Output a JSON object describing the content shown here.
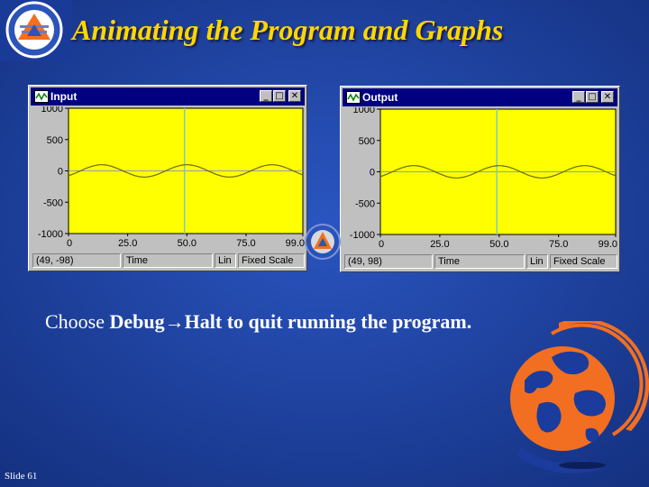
{
  "slide": {
    "title": "Animating the Program and Graphs",
    "caption_prefix": "Choose ",
    "caption_bold": "Debug→Halt",
    "caption_suffix": " to quit running the program.",
    "slide_number": "Slide 61"
  },
  "colors": {
    "background": "#1b3c9c",
    "title": "#ffd700",
    "plot_bg": "#ffff00",
    "signal": "#6b6b00",
    "cursor": "#7fc8c8",
    "globe_orange": "#f26f21"
  },
  "windows": {
    "input": {
      "title": "Input",
      "status": {
        "coords": "(49, -98)",
        "axis": "Time",
        "scale": "Lin",
        "mode": "Fixed Scale"
      },
      "chart_data": {
        "type": "line",
        "title": "",
        "xlabel": "",
        "ylabel": "",
        "ylim": [
          -1000,
          1000
        ],
        "xlim": [
          0,
          99
        ],
        "y_ticks": [
          "1000",
          "500",
          "0",
          "-500",
          "-1000"
        ],
        "x_ticks": [
          "0",
          "25.0",
          "50.0",
          "75.0",
          "99.0"
        ],
        "signal": {
          "amplitude": 98,
          "period": 36,
          "phase": 0
        },
        "cursor_x": 49,
        "grid": false
      }
    },
    "output": {
      "title": "Output",
      "status": {
        "coords": "(49, 98)",
        "axis": "Time",
        "scale": "Lin",
        "mode": "Fixed Scale"
      },
      "chart_data": {
        "type": "line",
        "title": "",
        "xlabel": "",
        "ylabel": "",
        "ylim": [
          -1000,
          1000
        ],
        "xlim": [
          0,
          99
        ],
        "y_ticks": [
          "1000",
          "500",
          "0",
          "-500",
          "-1000"
        ],
        "x_ticks": [
          "0",
          "25.0",
          "50.0",
          "75.0",
          "99.0"
        ],
        "signal": {
          "amplitude": 98,
          "period": 36,
          "phase": 0
        },
        "cursor_x": 49,
        "grid": false
      }
    }
  },
  "window_buttons": {
    "minimize": "_",
    "maximize": "□",
    "close": "✕"
  },
  "icons": {
    "logo": "university-logo-icon",
    "window": "graph-window-icon",
    "globe": "globe-icon"
  }
}
